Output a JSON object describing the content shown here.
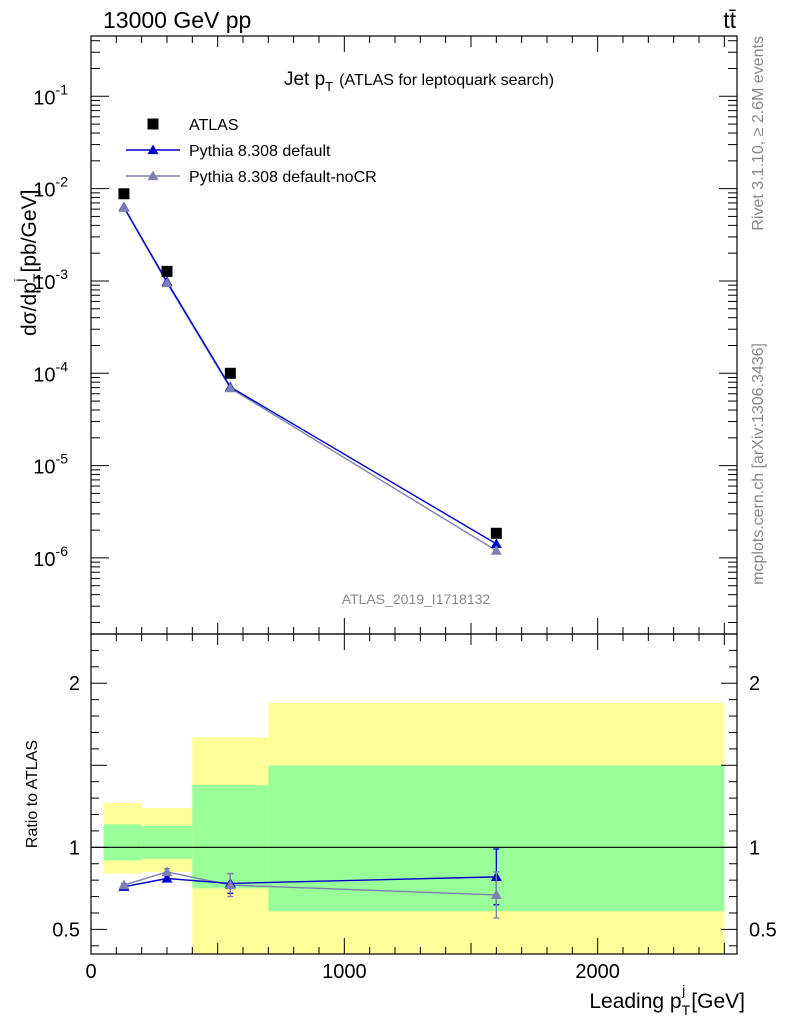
{
  "header": {
    "left": "13000 GeV pp",
    "right": "tt̄"
  },
  "side_labels": {
    "rivet": "Rivet 3.1.10, ≥ 2.6M events",
    "mcplots": "mcplots.cern.ch [arXiv:1306.3436]"
  },
  "chart_data": {
    "type": "scatter",
    "title_main": "Jet p",
    "title_sub": "T",
    "title_rest": "(ATLAS for leptoquark search)",
    "watermark": "ATLAS_2019_I1718132",
    "xlabel_main": "Leading p",
    "xlabel_sup": "j",
    "xlabel_sub": "T",
    "xlabel_unit": "[GeV]",
    "ylabel_prefix": "dσ/dp",
    "ylabel_sup": "j",
    "ylabel_sub": "T",
    "ylabel_unit": "[pb/GeV]",
    "ratio_ylabel": "Ratio to ATLAS",
    "xlim": [
      0,
      2550
    ],
    "ylim_log": [
      1.5e-07,
      0.45
    ],
    "ratio_ylim": [
      0.35,
      2.3
    ],
    "y_ticks": [
      {
        "exp": -6,
        "label": "10",
        "sup": "-6"
      },
      {
        "exp": -5,
        "label": "10",
        "sup": "-5"
      },
      {
        "exp": -4,
        "label": "10",
        "sup": "-4"
      },
      {
        "exp": -3,
        "label": "10",
        "sup": "-3"
      },
      {
        "exp": -2,
        "label": "10",
        "sup": "-2"
      },
      {
        "exp": -1,
        "label": "10",
        "sup": "-1"
      }
    ],
    "x_ticks": [
      {
        "value": 0,
        "label": "0"
      },
      {
        "value": 1000,
        "label": "1000"
      },
      {
        "value": 2000,
        "label": "2000"
      }
    ],
    "ratio_ticks": [
      {
        "value": 0.5,
        "label": "0.5"
      },
      {
        "value": 1,
        "label": "1"
      },
      {
        "value": 2,
        "label": "2"
      }
    ],
    "legend": [
      {
        "name": "ATLAS",
        "marker": "square",
        "color": "#000000"
      },
      {
        "name": "Pythia 8.308 default",
        "marker": "triangle",
        "color": "#0000cc"
      },
      {
        "name": "Pythia 8.308 default-noCR",
        "marker": "triangle",
        "color": "#7f7fb2"
      }
    ],
    "bins": [
      {
        "lo": 50,
        "hi": 200
      },
      {
        "lo": 200,
        "hi": 400
      },
      {
        "lo": 400,
        "hi": 700
      },
      {
        "lo": 700,
        "hi": 2500
      }
    ],
    "data": {
      "x": [
        130,
        300,
        550,
        1600
      ],
      "y": [
        0.0088,
        0.00127,
        0.0001,
        1.85e-06
      ]
    },
    "ratio_bands": [
      {
        "lo": 50,
        "hi": 200,
        "inner": [
          0.92,
          1.14
        ],
        "outer": [
          0.84,
          1.27
        ]
      },
      {
        "lo": 200,
        "hi": 400,
        "inner": [
          0.93,
          1.13
        ],
        "outer": [
          0.85,
          1.24
        ]
      },
      {
        "lo": 400,
        "hi": 700,
        "inner": [
          0.75,
          1.38
        ],
        "outer": [
          0.35,
          1.67
        ]
      },
      {
        "lo": 700,
        "hi": 2500,
        "inner": [
          0.61,
          1.5
        ],
        "outer": [
          0.35,
          1.88
        ]
      }
    ],
    "series": [
      {
        "name": "Pythia 8.308 default",
        "color": "#0000cc",
        "x": [
          130,
          300,
          550,
          1600
        ],
        "y": [
          0.0063,
          0.00098,
          7.1e-05,
          1.42e-06
        ],
        "ratio": [
          0.76,
          0.81,
          0.78,
          0.82
        ],
        "ratio_err": [
          0.01,
          0.015,
          0.06,
          0.17
        ]
      },
      {
        "name": "Pythia 8.308 default-noCR",
        "color": "#7f7fb2",
        "x": [
          130,
          300,
          550,
          1600
        ],
        "y": [
          0.0062,
          0.00095,
          6.9e-05,
          1.2e-06
        ],
        "ratio": [
          0.77,
          0.85,
          0.77,
          0.71
        ],
        "ratio_err": [
          0.01,
          0.02,
          0.07,
          0.14
        ]
      }
    ]
  }
}
